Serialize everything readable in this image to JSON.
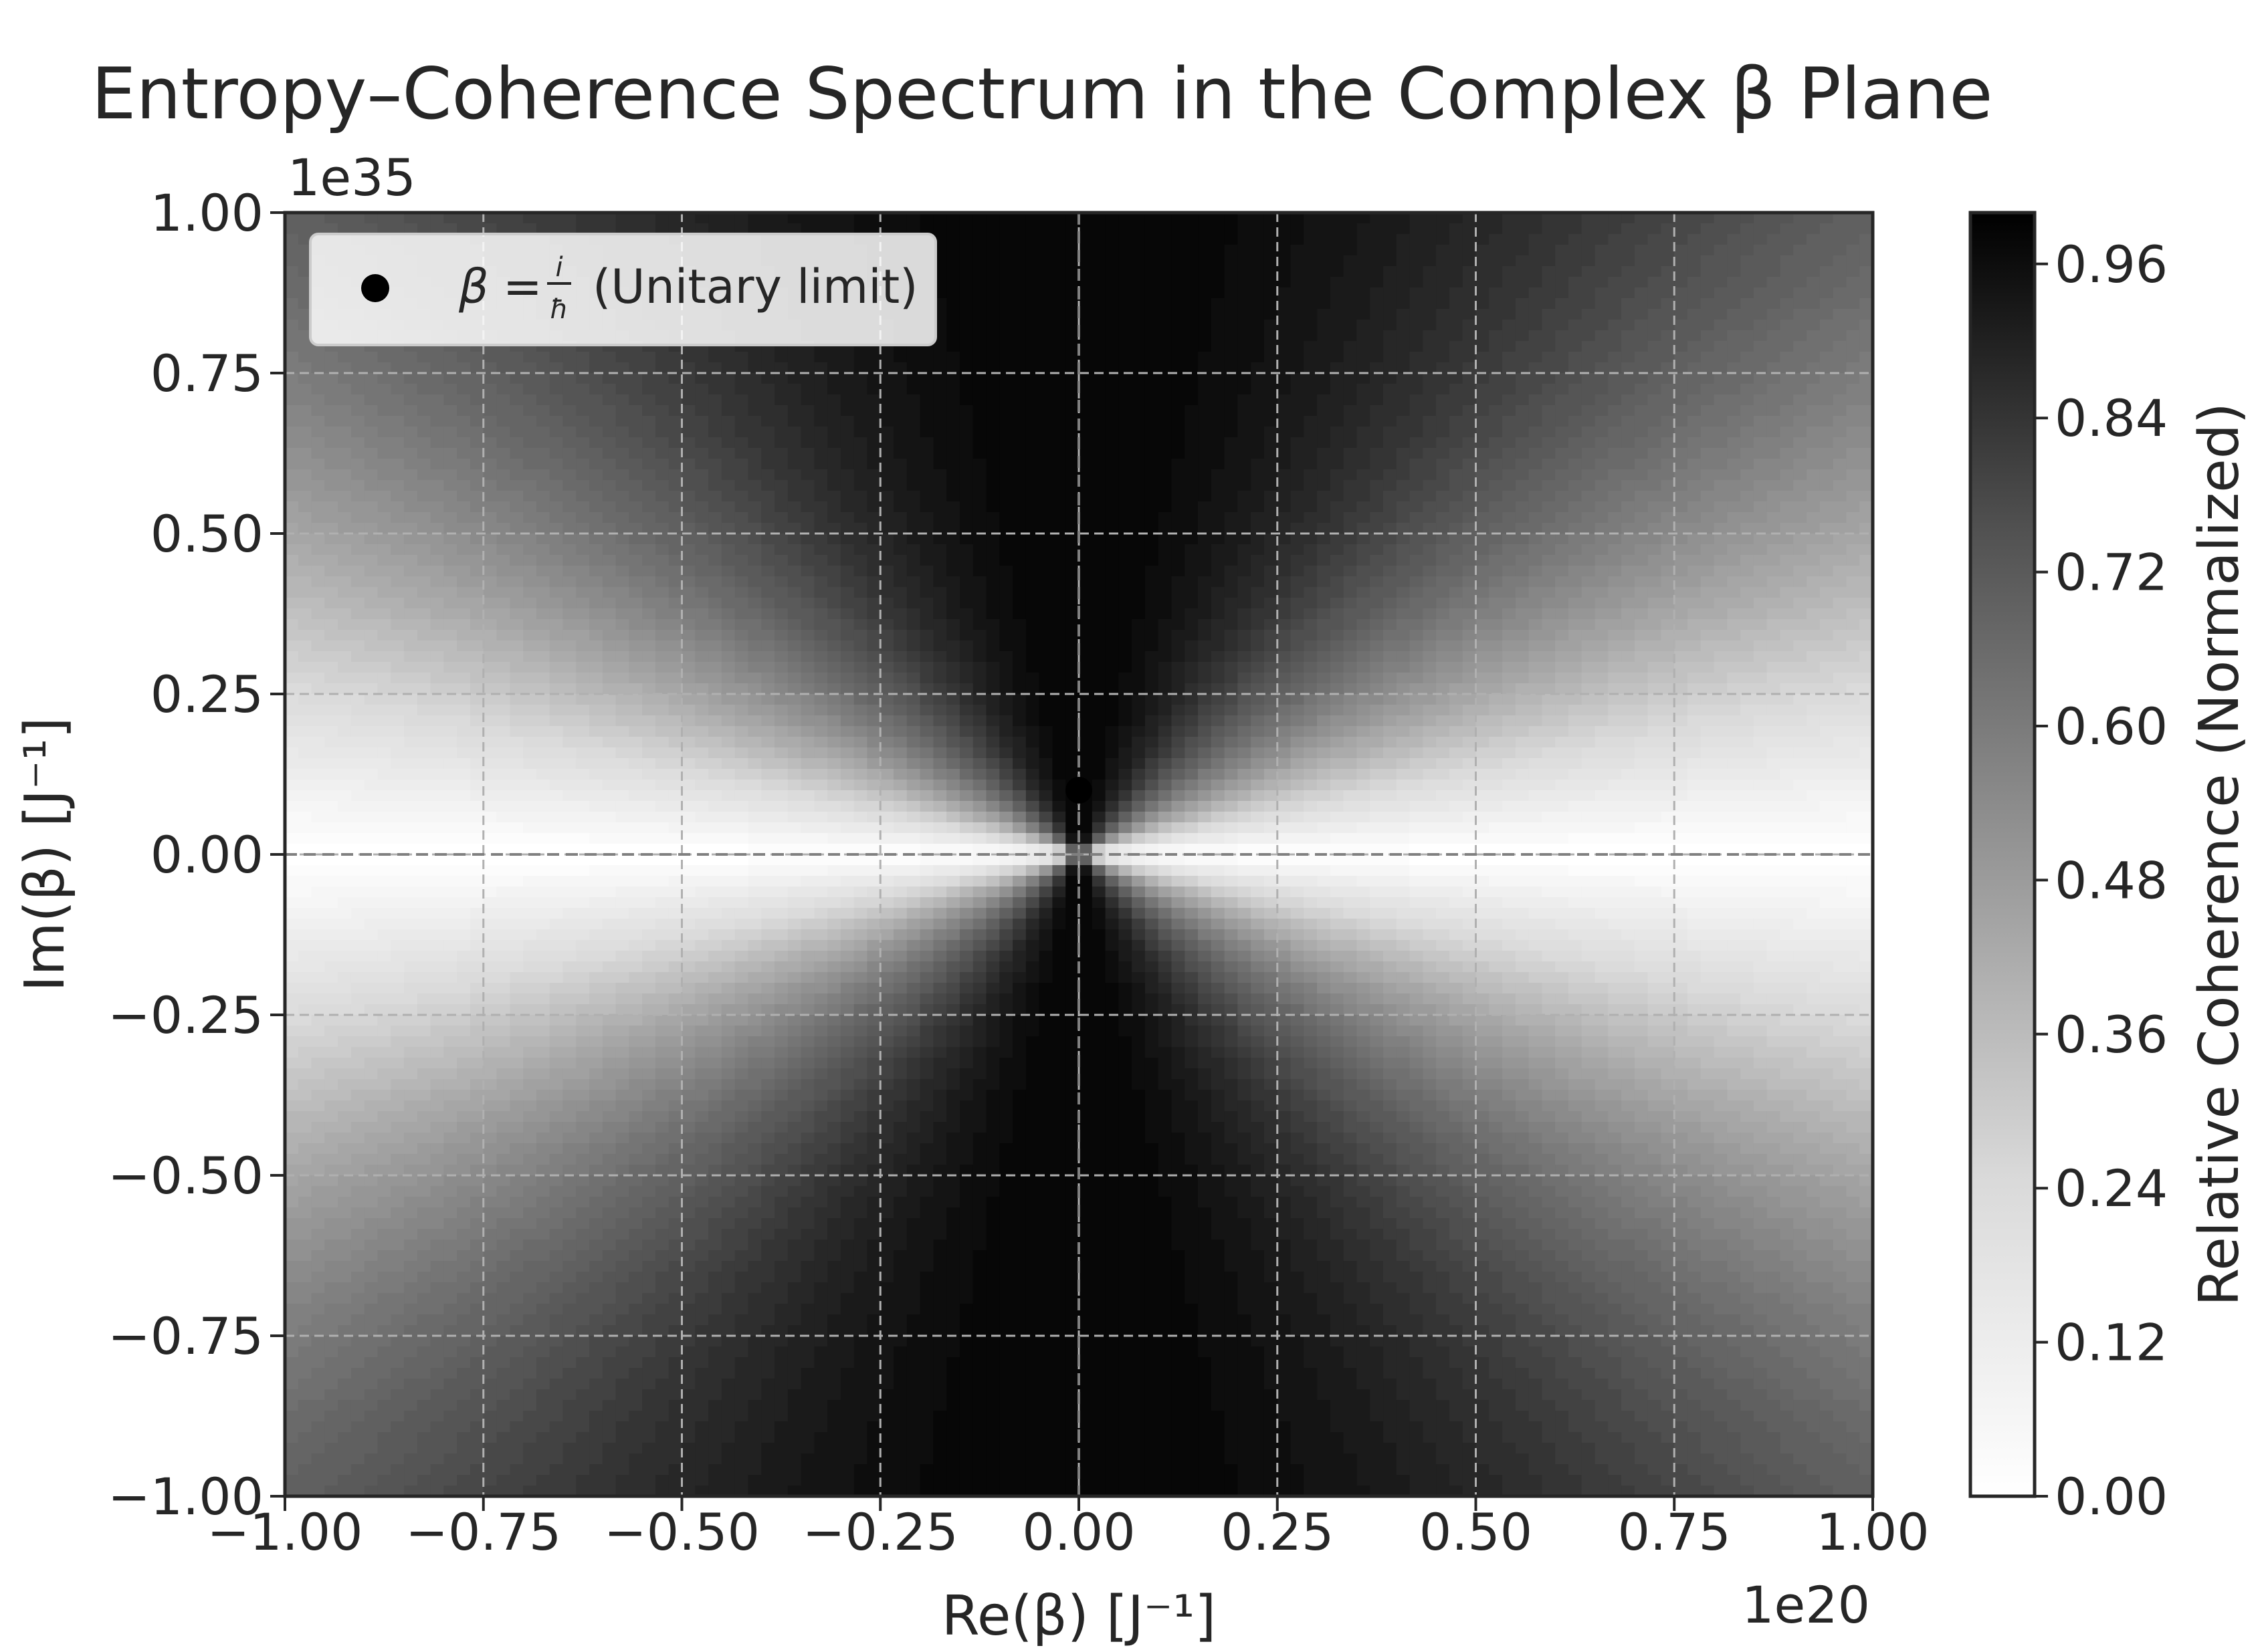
{
  "chart_data": {
    "type": "heatmap",
    "title": "Entropy–Coherence Spectrum in the Complex β Plane",
    "xlabel": "Re(β) [J⁻¹]",
    "ylabel": "Im(β) [J⁻¹]",
    "x_offset_label": "1e20",
    "y_offset_label": "1e35",
    "xlim": [
      -1.0,
      1.0
    ],
    "ylim": [
      -1.0,
      1.0
    ],
    "x_ticks": [
      -1.0,
      -0.75,
      -0.5,
      -0.25,
      0.0,
      0.25,
      0.5,
      0.75,
      1.0
    ],
    "x_tick_labels": [
      "−1.00",
      "−0.75",
      "−0.50",
      "−0.25",
      "0.00",
      "0.25",
      "0.50",
      "0.75",
      "1.00"
    ],
    "y_ticks": [
      -1.0,
      -0.75,
      -0.5,
      -0.25,
      0.0,
      0.25,
      0.5,
      0.75,
      1.0
    ],
    "y_tick_labels": [
      "−1.00",
      "−0.75",
      "−0.50",
      "−0.25",
      "0.00",
      "0.25",
      "0.50",
      "0.75",
      "1.00"
    ],
    "grid": true,
    "colormap": "Greys",
    "field": "relative coherence = |Im(β)| / |β| (normalized)",
    "colorbar": {
      "label": "Relative Coherence (Normalized)",
      "range": [
        0.0,
        1.0
      ],
      "ticks": [
        0.0,
        0.12,
        0.24,
        0.36,
        0.48,
        0.6,
        0.72,
        0.84,
        0.96
      ],
      "tick_labels": [
        "0.00",
        "0.12",
        "0.24",
        "0.36",
        "0.48",
        "0.60",
        "0.72",
        "0.84",
        "0.96"
      ]
    },
    "points": [
      {
        "name": "β = i/ħ (Unitary limit)",
        "x": 0.0,
        "y": 0.1
      }
    ],
    "reference_lines": [
      {
        "orientation": "horizontal",
        "value": 0.0,
        "style": "dashed"
      },
      {
        "orientation": "vertical",
        "value": 0.0,
        "style": "dashed"
      }
    ],
    "legend": {
      "placement": "top-left",
      "math_symbol": "β",
      "frac_num": "i",
      "frac_den": "ħ",
      "text": "(Unitary limit)"
    }
  }
}
